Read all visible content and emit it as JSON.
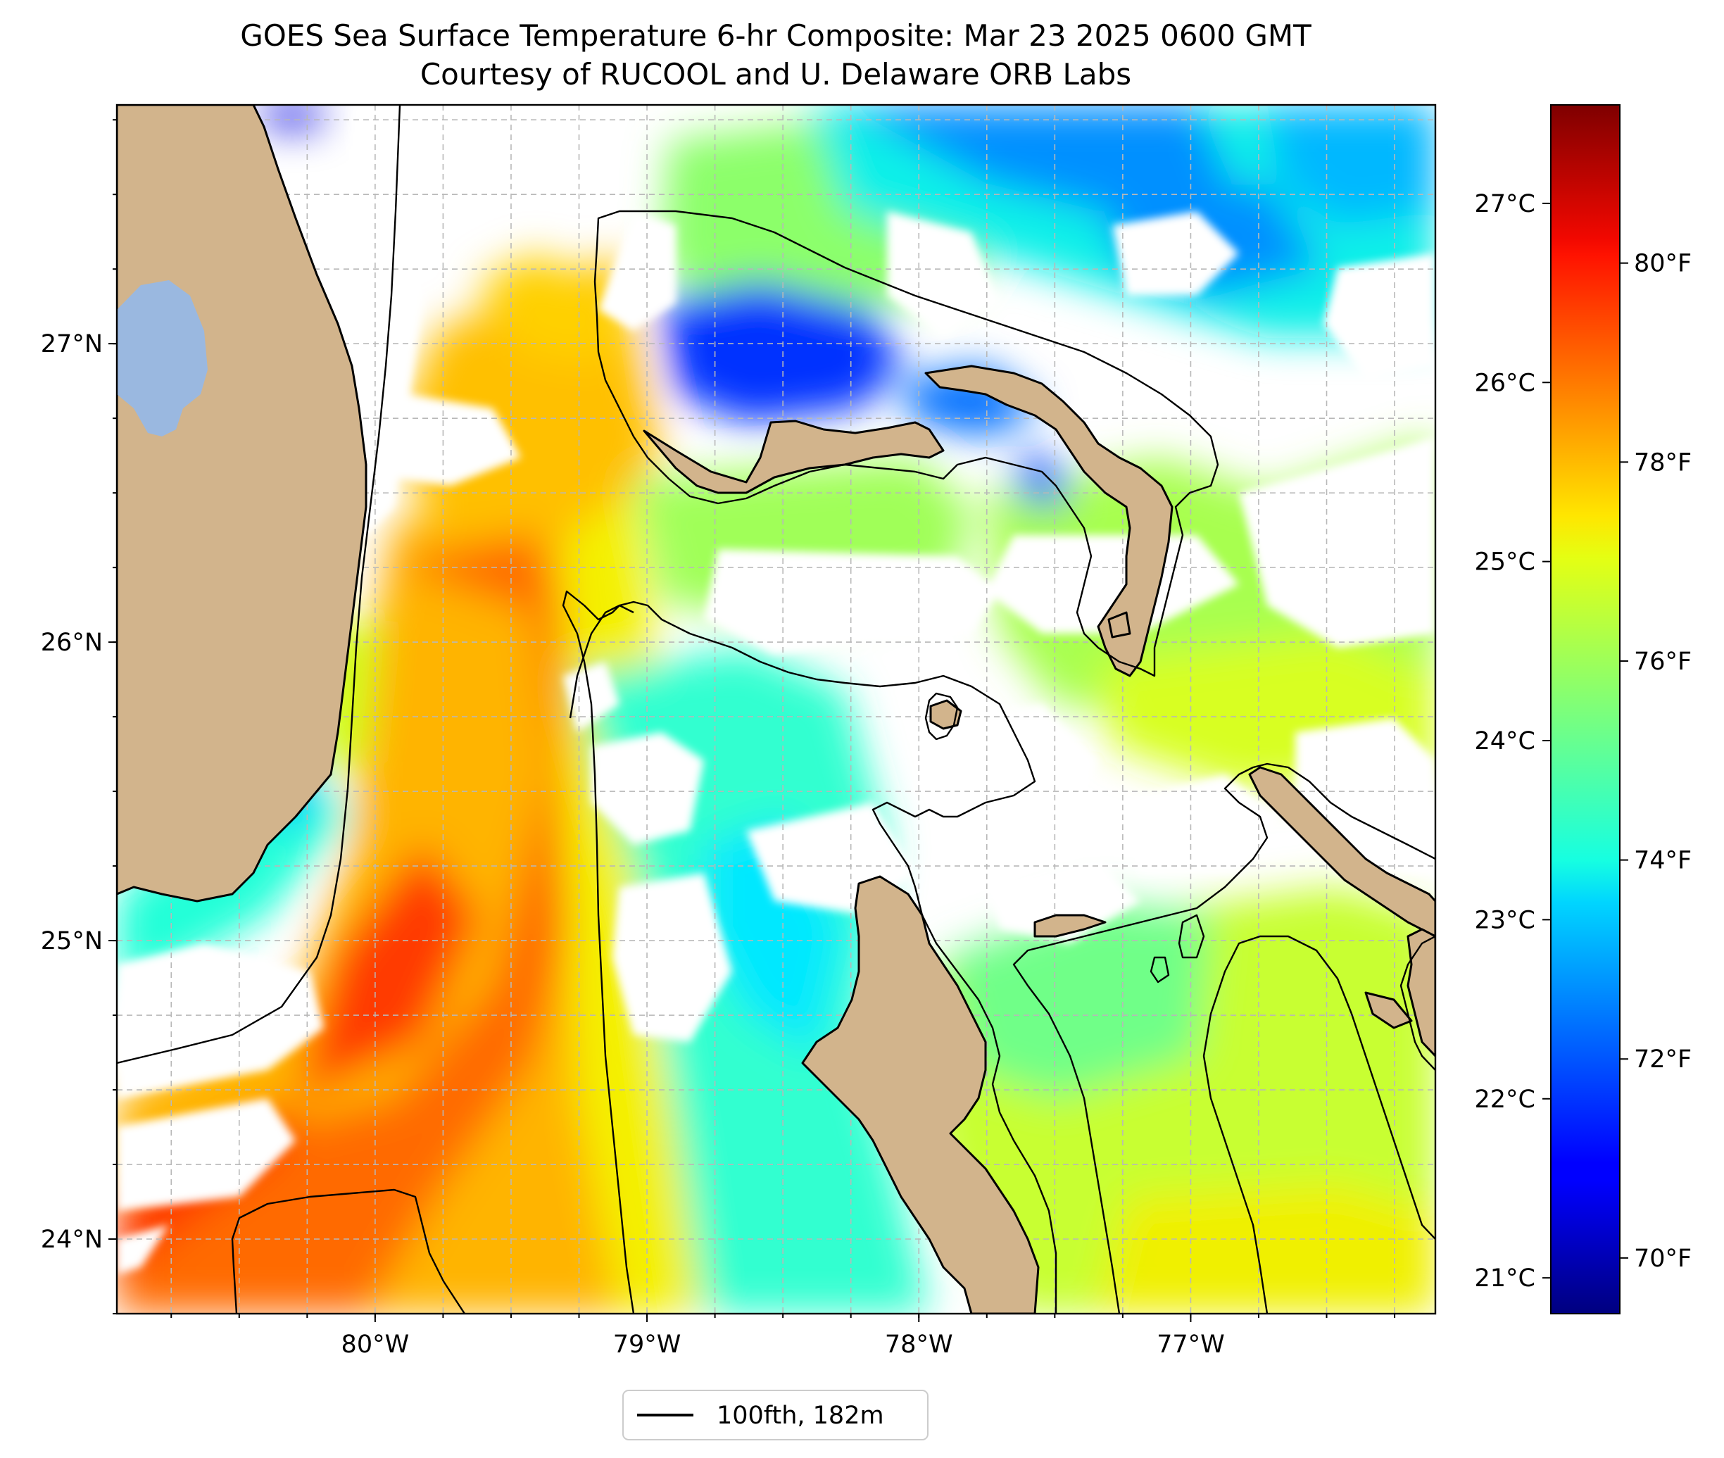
{
  "title": {
    "line1": "GOES Sea Surface Temperature 6-hr Composite: Mar 23 2025 0600 GMT",
    "line2": "Courtesy of RUCOOL and U. Delaware ORB Labs"
  },
  "map": {
    "lon_range": [
      -80.95,
      -76.1
    ],
    "lat_range": [
      23.75,
      27.8
    ],
    "latitude_ticks": [
      {
        "value": 24,
        "label": "24°N"
      },
      {
        "value": 25,
        "label": "25°N"
      },
      {
        "value": 26,
        "label": "26°N"
      },
      {
        "value": 27,
        "label": "27°N"
      }
    ],
    "longitude_ticks": [
      {
        "value": -80,
        "label": "80°W"
      },
      {
        "value": -79,
        "label": "79°W"
      },
      {
        "value": -78,
        "label": "78°W"
      },
      {
        "value": -77,
        "label": "77°W"
      }
    ],
    "gridlines": true
  },
  "colorbar": {
    "colormap": "jet",
    "celsius_range": [
      20.8,
      27.55
    ],
    "celsius_ticks": [
      {
        "value": 21,
        "label": "21°C"
      },
      {
        "value": 22,
        "label": "22°C"
      },
      {
        "value": 23,
        "label": "23°C"
      },
      {
        "value": 24,
        "label": "24°C"
      },
      {
        "value": 25,
        "label": "25°C"
      },
      {
        "value": 26,
        "label": "26°C"
      },
      {
        "value": 27,
        "label": "27°C"
      }
    ],
    "fahrenheit_ticks": [
      {
        "value": 70,
        "label": "70°F"
      },
      {
        "value": 72,
        "label": "72°F"
      },
      {
        "value": 74,
        "label": "74°F"
      },
      {
        "value": 76,
        "label": "76°F"
      },
      {
        "value": 78,
        "label": "78°F"
      },
      {
        "value": 80,
        "label": "80°F"
      }
    ]
  },
  "legend": {
    "label": "100fth, 182m",
    "location": "bottom-center"
  },
  "colors": {
    "land": "#d2b48c",
    "lake": "#9ab8e0",
    "no_data": "#ffffff",
    "coastline": "#000000"
  }
}
